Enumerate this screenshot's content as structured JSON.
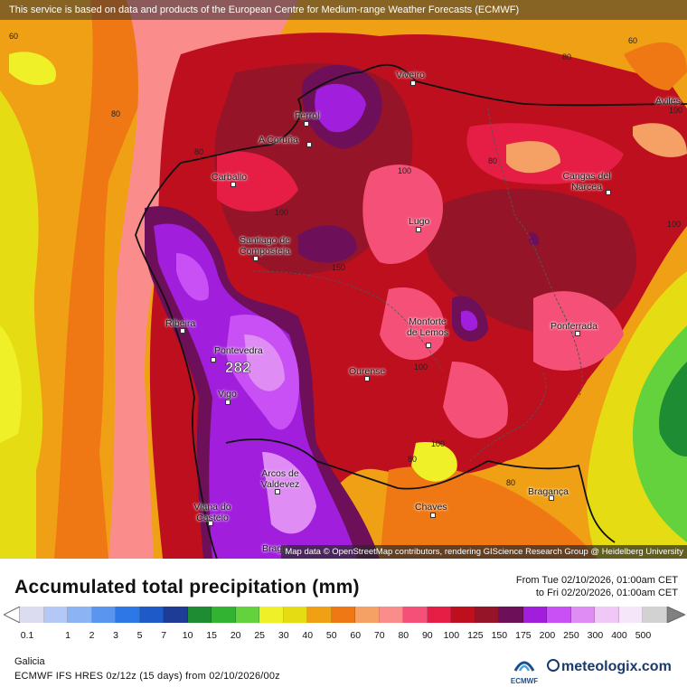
{
  "banner": "This service is based on data and products of the European Centre for Medium-range Weather Forecasts (ECMWF)",
  "attribution": "Map data © OpenStreetMap contributors, rendering GIScience Research Group @ Heidelberg University",
  "title": "Accumulated total precipitation (mm)",
  "date_from": "From Tue 02/10/2026, 01:00am CET",
  "date_to": "to Fri 02/20/2026, 01:00am CET",
  "region": "Galicia",
  "model": "ECMWF IFS HRES 0z/12z (15 days) from 02/10/2026/00z",
  "ecmwf_label": "ECMWF",
  "brand": "meteologix.com",
  "max_value": "282",
  "cities": [
    {
      "name": "Viveiro",
      "id": "viveiro"
    },
    {
      "name": "Ferrol",
      "id": "ferrol"
    },
    {
      "name": "A Coruña",
      "id": "a-coruna"
    },
    {
      "name": "Carballo",
      "id": "carballo"
    },
    {
      "name": "Santiago de Compostela",
      "id": "santiago"
    },
    {
      "name": "Lugo",
      "id": "lugo"
    },
    {
      "name": "Cangas del Narcea",
      "id": "cangas"
    },
    {
      "name": "Avilés",
      "id": "aviles"
    },
    {
      "name": "Ribeira",
      "id": "ribeira"
    },
    {
      "name": "Pontevedra",
      "id": "pontevedra"
    },
    {
      "name": "Monforte de Lemos",
      "id": "monforte"
    },
    {
      "name": "Ponferrada",
      "id": "ponferrada"
    },
    {
      "name": "Vigo",
      "id": "vigo"
    },
    {
      "name": "Ourense",
      "id": "ourense"
    },
    {
      "name": "Arcos de Valdevez",
      "id": "arcos"
    },
    {
      "name": "Chaves",
      "id": "chaves"
    },
    {
      "name": "Bragança",
      "id": "braganca"
    },
    {
      "name": "Viana do Castelo",
      "id": "viana"
    },
    {
      "name": "Braga",
      "id": "braga"
    }
  ],
  "contour_labels": [
    "60",
    "80",
    "80",
    "100",
    "100",
    "150",
    "100",
    "100",
    "80",
    "80",
    "80",
    "60",
    "100",
    "80",
    "100"
  ],
  "legend": {
    "ticks": [
      "0.1",
      "1",
      "2",
      "3",
      "5",
      "7",
      "10",
      "15",
      "20",
      "25",
      "30",
      "40",
      "50",
      "60",
      "70",
      "80",
      "90",
      "100",
      "125",
      "150",
      "175",
      "200",
      "250",
      "300",
      "400",
      "500"
    ],
    "colors": [
      "#dcdcf0",
      "#b4c8f5",
      "#8cb4f5",
      "#5a96f0",
      "#2d78e6",
      "#1e5ac8",
      "#1e3c96",
      "#1e8c32",
      "#32b432",
      "#64d23c",
      "#f0f028",
      "#e6dc14",
      "#f0a014",
      "#f07814",
      "#f5a064",
      "#fa8c8c",
      "#f55078",
      "#e61e46",
      "#be0f1e",
      "#961428",
      "#6e0f5a",
      "#a01edc",
      "#c850f5",
      "#e08cf5",
      "#f0c8f5",
      "#f5e6fa",
      "#d2d2d2"
    ]
  }
}
